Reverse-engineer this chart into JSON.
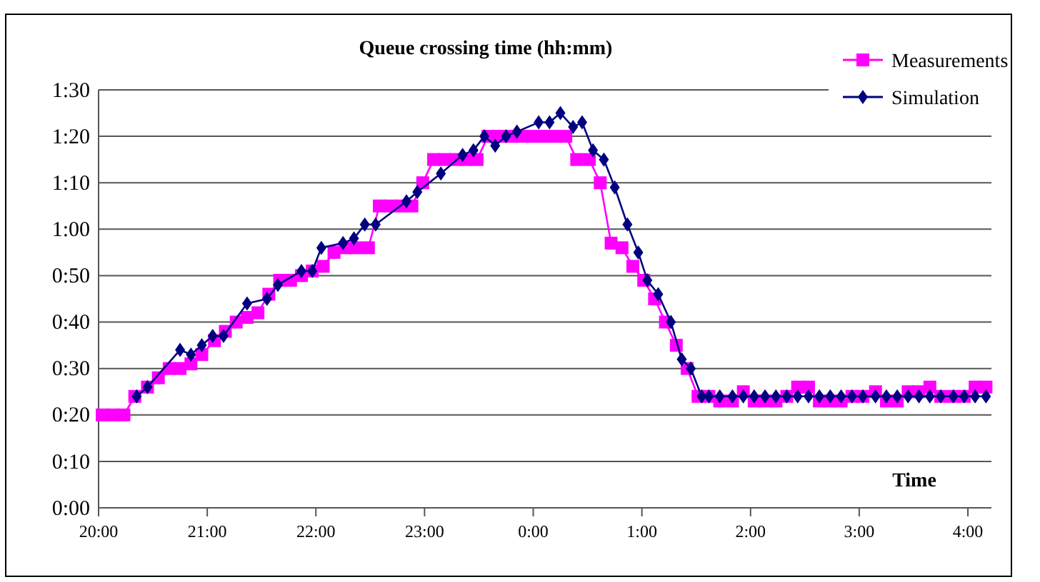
{
  "chart_data": {
    "type": "line",
    "title": "Queue crossing time (hh:mm)",
    "xlabel": "Time",
    "xlim": [
      "2000-01-01T20:00",
      "2000-01-02T04:13"
    ],
    "xticks": [
      {
        "value": "2000-01-01T20:00",
        "label": "20:00"
      },
      {
        "value": "2000-01-01T21:00",
        "label": "21:00"
      },
      {
        "value": "2000-01-01T22:00",
        "label": "22:00"
      },
      {
        "value": "2000-01-01T23:00",
        "label": "23:00"
      },
      {
        "value": "2000-01-02T00:00",
        "label": "0:00"
      },
      {
        "value": "2000-01-02T01:00",
        "label": "1:00"
      },
      {
        "value": "2000-01-02T02:00",
        "label": "2:00"
      },
      {
        "value": "2000-01-02T03:00",
        "label": "3:00"
      },
      {
        "value": "2000-01-02T04:00",
        "label": "4:00"
      }
    ],
    "ylim": [
      0,
      90
    ],
    "yticks": [
      {
        "value": 0,
        "label": "0:00"
      },
      {
        "value": 10,
        "label": "0:10"
      },
      {
        "value": 20,
        "label": "0:20"
      },
      {
        "value": 30,
        "label": "0:30"
      },
      {
        "value": 40,
        "label": "0:40"
      },
      {
        "value": 50,
        "label": "0:50"
      },
      {
        "value": 60,
        "label": "1:00"
      },
      {
        "value": 70,
        "label": "1:10"
      },
      {
        "value": 80,
        "label": "1:20"
      },
      {
        "value": 90,
        "label": "1:30"
      }
    ],
    "grid": "y",
    "legend": "top right",
    "line_style": "solid",
    "series": [
      {
        "name": "Measurements",
        "color": "#ff00ff",
        "marker": "square",
        "x": [
          "2000-01-01T20:02",
          "2000-01-01T20:08",
          "2000-01-01T20:14",
          "2000-01-01T20:20",
          "2000-01-01T20:27",
          "2000-01-01T20:33",
          "2000-01-01T20:39",
          "2000-01-01T20:45",
          "2000-01-01T20:51",
          "2000-01-01T20:57",
          "2000-01-01T21:04",
          "2000-01-01T21:10",
          "2000-01-01T21:16",
          "2000-01-01T21:22",
          "2000-01-01T21:28",
          "2000-01-01T21:34",
          "2000-01-01T21:40",
          "2000-01-01T21:46",
          "2000-01-01T21:52",
          "2000-01-01T21:58",
          "2000-01-01T22:04",
          "2000-01-01T22:10",
          "2000-01-01T22:16",
          "2000-01-01T22:22",
          "2000-01-01T22:29",
          "2000-01-01T22:35",
          "2000-01-01T22:41",
          "2000-01-01T22:47",
          "2000-01-01T22:53",
          "2000-01-01T22:59",
          "2000-01-01T23:05",
          "2000-01-01T23:11",
          "2000-01-01T23:17",
          "2000-01-01T23:23",
          "2000-01-01T23:29",
          "2000-01-01T23:35",
          "2000-01-01T23:41",
          "2000-01-01T23:48",
          "2000-01-01T23:54",
          "2000-01-02T00:00",
          "2000-01-02T00:06",
          "2000-01-02T00:12",
          "2000-01-02T00:18",
          "2000-01-02T00:24",
          "2000-01-02T00:31",
          "2000-01-02T00:37",
          "2000-01-02T00:43",
          "2000-01-02T00:49",
          "2000-01-02T00:55",
          "2000-01-02T01:01",
          "2000-01-02T01:07",
          "2000-01-02T01:13",
          "2000-01-02T01:19",
          "2000-01-02T01:25",
          "2000-01-02T01:31",
          "2000-01-02T01:37",
          "2000-01-02T01:43",
          "2000-01-02T01:50",
          "2000-01-02T01:56",
          "2000-01-02T02:02",
          "2000-01-02T02:08",
          "2000-01-02T02:14",
          "2000-01-02T02:20",
          "2000-01-02T02:26",
          "2000-01-02T02:32",
          "2000-01-02T02:38",
          "2000-01-02T02:44",
          "2000-01-02T02:50",
          "2000-01-02T02:56",
          "2000-01-02T03:02",
          "2000-01-02T03:09",
          "2000-01-02T03:15",
          "2000-01-02T03:21",
          "2000-01-02T03:27",
          "2000-01-02T03:33",
          "2000-01-02T03:39",
          "2000-01-02T03:45",
          "2000-01-02T03:52",
          "2000-01-02T03:58",
          "2000-01-02T04:04",
          "2000-01-02T04:10"
        ],
        "values": [
          20,
          20,
          20,
          24,
          26,
          28,
          30,
          30,
          31,
          33,
          36,
          38,
          40,
          41,
          42,
          46,
          49,
          49,
          50,
          51,
          52,
          55,
          56,
          56,
          56,
          65,
          65,
          65,
          65,
          70,
          75,
          75,
          75,
          75,
          75,
          80,
          80,
          80,
          80,
          80,
          80,
          80,
          80,
          75,
          75,
          70,
          57,
          56,
          52,
          49,
          45,
          40,
          35,
          30,
          24,
          24,
          23,
          23,
          25,
          23,
          23,
          23,
          24,
          26,
          26,
          23,
          23,
          23,
          24,
          24,
          25,
          23,
          23,
          25,
          25,
          26,
          24,
          24,
          24,
          26,
          26
        ]
      },
      {
        "name": "Simulation",
        "color": "#000080",
        "marker": "diamond",
        "x": [
          "2000-01-01T20:21",
          "2000-01-01T20:27",
          "2000-01-01T20:45",
          "2000-01-01T20:51",
          "2000-01-01T20:57",
          "2000-01-01T21:03",
          "2000-01-01T21:09",
          "2000-01-01T21:22",
          "2000-01-01T21:33",
          "2000-01-01T21:39",
          "2000-01-01T21:52",
          "2000-01-01T21:58",
          "2000-01-01T22:03",
          "2000-01-01T22:15",
          "2000-01-01T22:21",
          "2000-01-01T22:27",
          "2000-01-01T22:33",
          "2000-01-01T22:50",
          "2000-01-01T22:56",
          "2000-01-01T23:09",
          "2000-01-01T23:21",
          "2000-01-01T23:27",
          "2000-01-01T23:33",
          "2000-01-01T23:39",
          "2000-01-01T23:45",
          "2000-01-01T23:51",
          "2000-01-02T00:03",
          "2000-01-02T00:09",
          "2000-01-02T00:15",
          "2000-01-02T00:22",
          "2000-01-02T00:27",
          "2000-01-02T00:33",
          "2000-01-02T00:39",
          "2000-01-02T00:45",
          "2000-01-02T00:52",
          "2000-01-02T00:58",
          "2000-01-02T01:03",
          "2000-01-02T01:09",
          "2000-01-02T01:16",
          "2000-01-02T01:22",
          "2000-01-02T01:27",
          "2000-01-02T01:33",
          "2000-01-02T01:37",
          "2000-01-02T01:43",
          "2000-01-02T01:50",
          "2000-01-02T01:56",
          "2000-01-02T02:02",
          "2000-01-02T02:08",
          "2000-01-02T02:14",
          "2000-01-02T02:20",
          "2000-01-02T02:26",
          "2000-01-02T02:32",
          "2000-01-02T02:38",
          "2000-01-02T02:44",
          "2000-01-02T02:50",
          "2000-01-02T02:56",
          "2000-01-02T03:02",
          "2000-01-02T03:09",
          "2000-01-02T03:15",
          "2000-01-02T03:21",
          "2000-01-02T03:27",
          "2000-01-02T03:33",
          "2000-01-02T03:39",
          "2000-01-02T03:45",
          "2000-01-02T03:52",
          "2000-01-02T03:58",
          "2000-01-02T04:04",
          "2000-01-02T04:10"
        ],
        "values": [
          24,
          26,
          34,
          33,
          35,
          37,
          37,
          44,
          45,
          48,
          51,
          51,
          56,
          57,
          58,
          61,
          61,
          66,
          68,
          72,
          76,
          77,
          80,
          78,
          80,
          81,
          83,
          83,
          85,
          82,
          83,
          77,
          75,
          69,
          61,
          55,
          49,
          46,
          40,
          32,
          30,
          24,
          24,
          24,
          24,
          24,
          24,
          24,
          24,
          24,
          24,
          24,
          24,
          24,
          24,
          24,
          24,
          24,
          24,
          24,
          24,
          24,
          24,
          24,
          24,
          24,
          24,
          24
        ]
      }
    ]
  }
}
